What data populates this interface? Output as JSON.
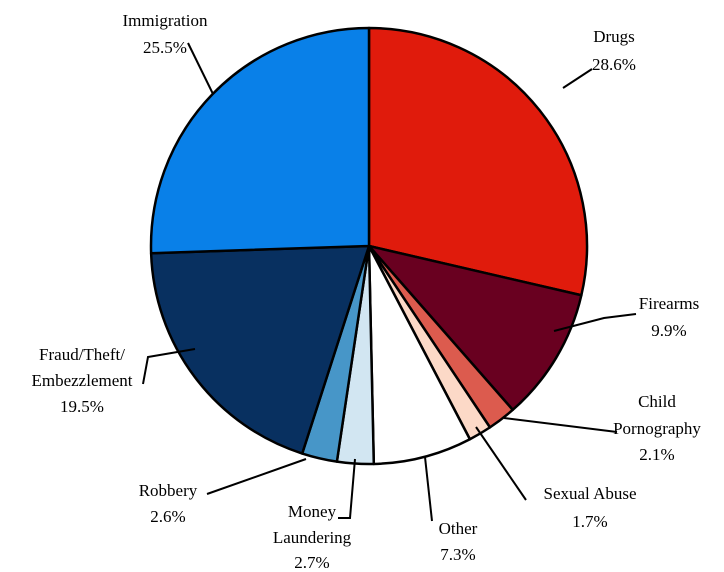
{
  "chart_data": {
    "type": "pie",
    "title": "",
    "slices": [
      {
        "label": [
          "Drugs"
        ],
        "pct_text": "28.6%",
        "value": 28.6,
        "color": "#e01b0c"
      },
      {
        "label": [
          "Firearms"
        ],
        "pct_text": "9.9%",
        "value": 9.9,
        "color": "#690020"
      },
      {
        "label": [
          "Child",
          "Pornography"
        ],
        "pct_text": "2.1%",
        "value": 2.1,
        "color": "#dc5b4e"
      },
      {
        "label": [
          "Sexual Abuse"
        ],
        "pct_text": "1.7%",
        "value": 1.7,
        "color": "#fcd9c7"
      },
      {
        "label": [
          "Other"
        ],
        "pct_text": "7.3%",
        "value": 7.3,
        "color": "#ffffff"
      },
      {
        "label": [
          "Money",
          "Laundering"
        ],
        "pct_text": "2.7%",
        "value": 2.7,
        "color": "#d2e6f2"
      },
      {
        "label": [
          "Robbery"
        ],
        "pct_text": "2.6%",
        "value": 2.6,
        "color": "#4796c8"
      },
      {
        "label": [
          "Fraud/Theft/",
          "Embezzlement"
        ],
        "pct_text": "19.5%",
        "value": 19.5,
        "color": "#083060"
      },
      {
        "label": [
          "Immigration"
        ],
        "pct_text": "25.5%",
        "value": 25.5,
        "color": "#0980e8"
      }
    ]
  }
}
